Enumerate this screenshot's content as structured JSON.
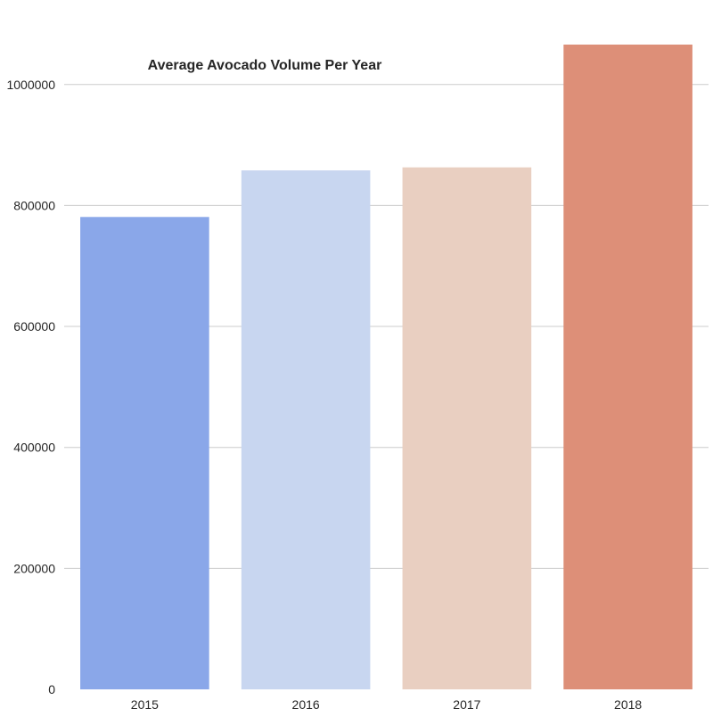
{
  "chart_data": {
    "type": "bar",
    "title": "Average Avocado Volume Per Year",
    "xlabel": "",
    "ylabel": "",
    "categories": [
      "2015",
      "2016",
      "2017",
      "2018"
    ],
    "values": [
      781000,
      858000,
      863000,
      1066000
    ],
    "colors": [
      "#8aa7e9",
      "#c8d6f0",
      "#e9cfc1",
      "#dd8f78"
    ],
    "ylim": [
      0,
      1066000
    ],
    "yticks": [
      0,
      200000,
      400000,
      600000,
      800000,
      1000000
    ],
    "ytick_labels": [
      "0",
      "200000",
      "400000",
      "600000",
      "800000",
      "1000000"
    ],
    "grid": "horizontal",
    "legend": "none"
  }
}
